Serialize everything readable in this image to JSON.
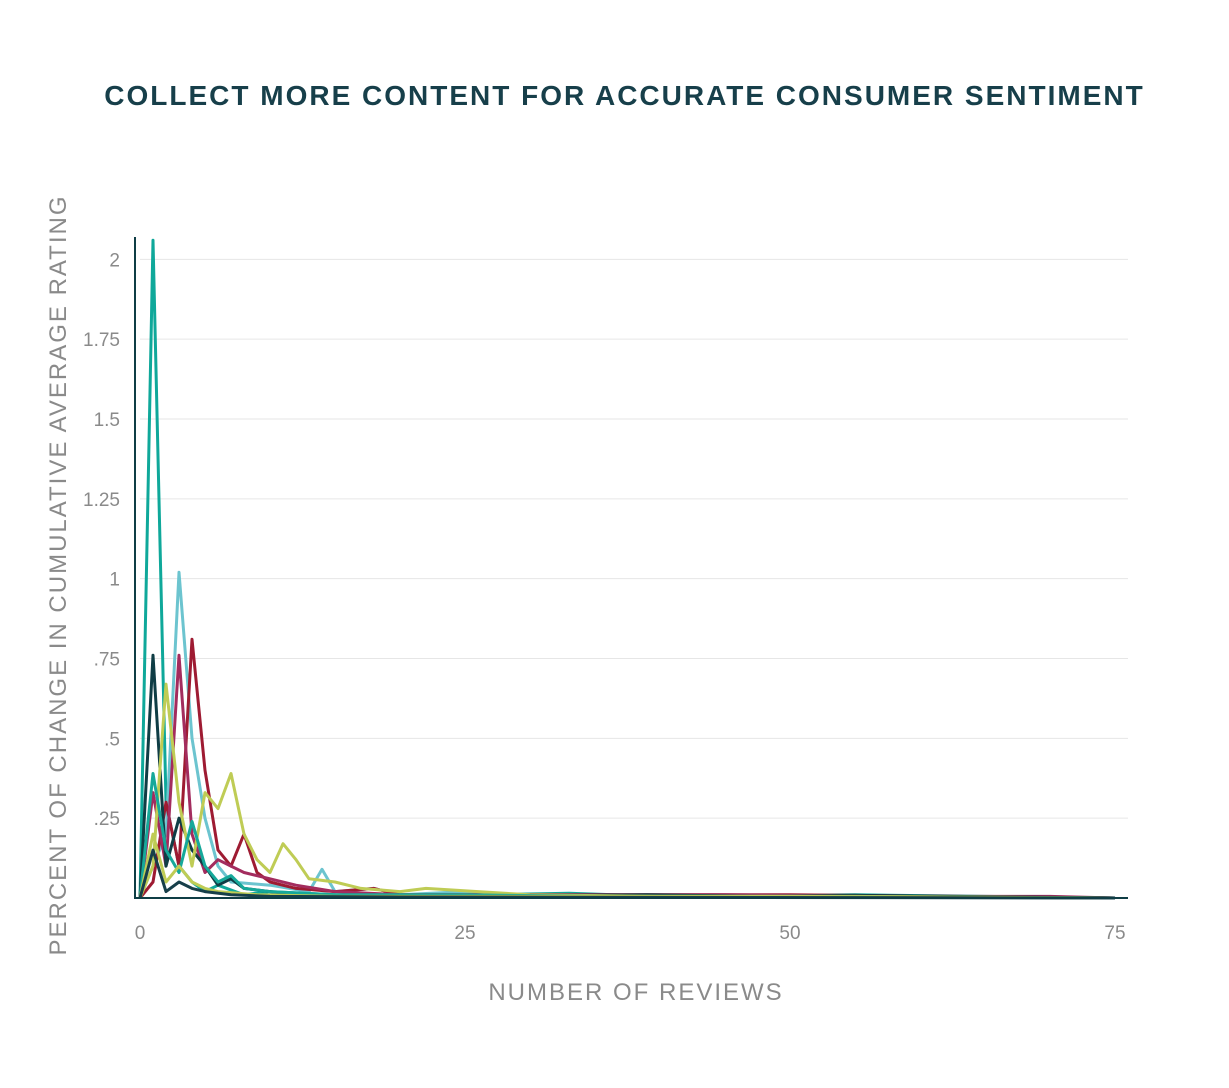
{
  "chart_data": {
    "type": "line",
    "title": "COLLECT MORE CONTENT FOR ACCURATE CONSUMER SENTIMENT",
    "xlabel": "NUMBER OF REVIEWS",
    "ylabel": "PERCENT OF CHANGE IN CUMULATIVE AVERAGE RATING",
    "xlim": [
      0,
      76
    ],
    "ylim": [
      0,
      2.07
    ],
    "x_ticks": [
      {
        "value": 0,
        "label": "0"
      },
      {
        "value": 25,
        "label": "25"
      },
      {
        "value": 50,
        "label": "50"
      },
      {
        "value": 75,
        "label": "75"
      }
    ],
    "y_ticks": [
      {
        "value": 0.25,
        "label": ".25"
      },
      {
        "value": 0.5,
        "label": ".5"
      },
      {
        "value": 0.75,
        "label": ".75"
      },
      {
        "value": 1,
        "label": "1"
      },
      {
        "value": 1.25,
        "label": "1.25"
      },
      {
        "value": 1.5,
        "label": "1.5"
      },
      {
        "value": 1.75,
        "label": "1.75"
      },
      {
        "value": 2,
        "label": "2"
      }
    ],
    "grid": true,
    "legend": "none",
    "series": [
      {
        "color": "#0fa89a",
        "peak": [
          1,
          2.06
        ],
        "points": [
          [
            0,
            0
          ],
          [
            1,
            2.06
          ],
          [
            2,
            0.3
          ],
          [
            3,
            0.1
          ],
          [
            4,
            0.05
          ],
          [
            5,
            0.02
          ],
          [
            6,
            0.04
          ],
          [
            8,
            0.01
          ],
          [
            10,
            0.02
          ],
          [
            15,
            0.01
          ],
          [
            20,
            0.005
          ],
          [
            33,
            0.015
          ],
          [
            40,
            0.005
          ],
          [
            55,
            0.01
          ],
          [
            75,
            0
          ]
        ]
      },
      {
        "color": "#6cc4cf",
        "peak": [
          3,
          1.02
        ],
        "points": [
          [
            0,
            0
          ],
          [
            1,
            0.1
          ],
          [
            2,
            0.2
          ],
          [
            3,
            1.02
          ],
          [
            4,
            0.5
          ],
          [
            5,
            0.25
          ],
          [
            6,
            0.1
          ],
          [
            7,
            0.05
          ],
          [
            10,
            0.04
          ],
          [
            13,
            0.02
          ],
          [
            14,
            0.09
          ],
          [
            15,
            0.02
          ],
          [
            18,
            0.03
          ],
          [
            20,
            0.01
          ],
          [
            25,
            0.02
          ],
          [
            28,
            0.01
          ],
          [
            35,
            0.005
          ],
          [
            44,
            0.01
          ],
          [
            60,
            0.005
          ],
          [
            75,
            0
          ]
        ]
      },
      {
        "color": "#9e1b32",
        "peak": [
          4,
          0.81
        ],
        "points": [
          [
            0,
            0
          ],
          [
            1,
            0.05
          ],
          [
            2,
            0.3
          ],
          [
            3,
            0.1
          ],
          [
            4,
            0.81
          ],
          [
            5,
            0.4
          ],
          [
            6,
            0.15
          ],
          [
            7,
            0.1
          ],
          [
            8,
            0.2
          ],
          [
            9,
            0.08
          ],
          [
            10,
            0.05
          ],
          [
            12,
            0.03
          ],
          [
            15,
            0.02
          ],
          [
            18,
            0.03
          ],
          [
            20,
            0.01
          ],
          [
            30,
            0.01
          ],
          [
            42,
            0.01
          ],
          [
            50,
            0.01
          ],
          [
            75,
            0
          ]
        ]
      },
      {
        "color": "#a32c5e",
        "peak": [
          3,
          0.76
        ],
        "points": [
          [
            0,
            0
          ],
          [
            1,
            0.33
          ],
          [
            2,
            0.1
          ],
          [
            3,
            0.76
          ],
          [
            4,
            0.2
          ],
          [
            5,
            0.08
          ],
          [
            6,
            0.12
          ],
          [
            7,
            0.1
          ],
          [
            8,
            0.08
          ],
          [
            10,
            0.06
          ],
          [
            12,
            0.04
          ],
          [
            15,
            0.02
          ],
          [
            20,
            0.01
          ],
          [
            30,
            0.01
          ],
          [
            45,
            0.01
          ],
          [
            60,
            0.005
          ],
          [
            70,
            0.005
          ],
          [
            75,
            0
          ]
        ]
      },
      {
        "color": "#0f3d45",
        "peak": [
          1,
          0.76
        ],
        "points": [
          [
            0,
            0
          ],
          [
            1,
            0.76
          ],
          [
            2,
            0.1
          ],
          [
            3,
            0.25
          ],
          [
            4,
            0.15
          ],
          [
            5,
            0.1
          ],
          [
            6,
            0.04
          ],
          [
            7,
            0.06
          ],
          [
            8,
            0.03
          ],
          [
            10,
            0.02
          ],
          [
            12,
            0.01
          ],
          [
            20,
            0.005
          ],
          [
            39,
            0.01
          ],
          [
            48,
            0.005
          ],
          [
            55,
            0.008
          ],
          [
            75,
            0
          ]
        ]
      },
      {
        "color": "#bfcc55",
        "peak": [
          2,
          0.67
        ],
        "points": [
          [
            0,
            0
          ],
          [
            1,
            0.1
          ],
          [
            2,
            0.67
          ],
          [
            3,
            0.3
          ],
          [
            4,
            0.1
          ],
          [
            5,
            0.33
          ],
          [
            6,
            0.28
          ],
          [
            7,
            0.39
          ],
          [
            8,
            0.2
          ],
          [
            9,
            0.12
          ],
          [
            10,
            0.08
          ],
          [
            11,
            0.17
          ],
          [
            12,
            0.12
          ],
          [
            13,
            0.06
          ],
          [
            15,
            0.05
          ],
          [
            17,
            0.03
          ],
          [
            20,
            0.02
          ],
          [
            22,
            0.03
          ],
          [
            26,
            0.02
          ],
          [
            30,
            0.01
          ],
          [
            40,
            0.005
          ],
          [
            55,
            0.005
          ],
          [
            75,
            0
          ]
        ]
      },
      {
        "color": "#16a89a",
        "peak": [
          1,
          0.39
        ],
        "points": [
          [
            0,
            0
          ],
          [
            1,
            0.39
          ],
          [
            2,
            0.15
          ],
          [
            3,
            0.08
          ],
          [
            4,
            0.24
          ],
          [
            5,
            0.1
          ],
          [
            6,
            0.05
          ],
          [
            7,
            0.07
          ],
          [
            8,
            0.03
          ],
          [
            10,
            0.02
          ],
          [
            15,
            0.01
          ],
          [
            25,
            0.01
          ],
          [
            35,
            0.005
          ],
          [
            50,
            0.005
          ],
          [
            75,
            0
          ]
        ]
      },
      {
        "color": "#bfcc55",
        "peak": [
          1,
          0.2
        ],
        "points": [
          [
            0,
            0
          ],
          [
            1,
            0.2
          ],
          [
            2,
            0.05
          ],
          [
            3,
            0.1
          ],
          [
            4,
            0.05
          ],
          [
            5,
            0.03
          ],
          [
            6,
            0.02
          ],
          [
            9,
            0.01
          ],
          [
            15,
            0.005
          ],
          [
            25,
            0.005
          ],
          [
            50,
            0.005
          ],
          [
            75,
            0
          ]
        ]
      },
      {
        "color": "#173f4a",
        "peak": [
          1,
          0.15
        ],
        "points": [
          [
            0,
            0
          ],
          [
            1,
            0.15
          ],
          [
            2,
            0.02
          ],
          [
            3,
            0.05
          ],
          [
            4,
            0.03
          ],
          [
            5,
            0.02
          ],
          [
            7,
            0.01
          ],
          [
            10,
            0.005
          ],
          [
            20,
            0.003
          ],
          [
            75,
            0
          ]
        ]
      }
    ]
  }
}
